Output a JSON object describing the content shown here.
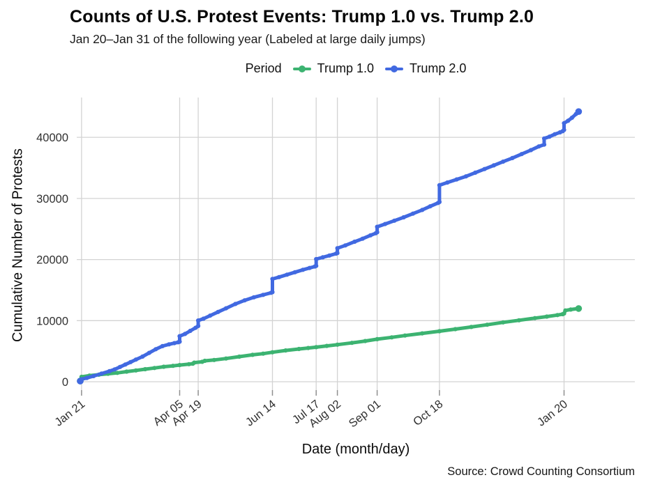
{
  "title": "Counts of U.S. Protest Events: Trump 1.0 vs. Trump 2.0",
  "subtitle": "Jan 20–Jan 31 of the following year (Labeled at large daily jumps)",
  "caption": "Source: Crowd Counting Consortium",
  "legend": {
    "title": "Period",
    "items": [
      {
        "label": "Trump 1.0",
        "color": "#3cb371"
      },
      {
        "label": "Trump 2.0",
        "color": "#4169e1"
      }
    ]
  },
  "colors": {
    "trump1": "#3cb371",
    "trump2": "#4169e1",
    "gridline": "#d3d3d3",
    "tick": "#8f8f8f",
    "tick_label": "#303030"
  },
  "chart_data": {
    "type": "line",
    "title": "Counts of U.S. Protest Events: Trump 1.0 vs. Trump 2.0",
    "subtitle": "Jan 20–Jan 31 of the following year (Labeled at large daily jumps)",
    "xlabel": "Date (month/day)",
    "ylabel": "Cumulative Number of Protests",
    "grid": true,
    "legend_position": "top",
    "x_axis": {
      "unit": "days since Jan 20 inauguration",
      "domain_days": [
        0,
        376
      ],
      "ticks": [
        {
          "label": "Jan 21",
          "day": 1
        },
        {
          "label": "Apr 05",
          "day": 75
        },
        {
          "label": "Apr 19",
          "day": 89
        },
        {
          "label": "Jun 14",
          "day": 145
        },
        {
          "label": "Jul 17",
          "day": 178
        },
        {
          "label": "Aug 02",
          "day": 194
        },
        {
          "label": "Sep 01",
          "day": 224
        },
        {
          "label": "Oct 18",
          "day": 271
        },
        {
          "label": "Jan 20",
          "day": 365
        }
      ]
    },
    "y_axis": {
      "ticks": [
        0,
        10000,
        20000,
        30000,
        40000
      ],
      "range": [
        0,
        44200
      ]
    },
    "series": [
      {
        "name": "Trump 1.0",
        "color": "#3cb371",
        "points": [
          [
            0,
            120
          ],
          [
            1,
            800
          ],
          [
            7,
            1000
          ],
          [
            14,
            1150
          ],
          [
            21,
            1300
          ],
          [
            28,
            1450
          ],
          [
            35,
            1650
          ],
          [
            42,
            1850
          ],
          [
            49,
            2050
          ],
          [
            56,
            2250
          ],
          [
            63,
            2450
          ],
          [
            70,
            2600
          ],
          [
            75,
            2720
          ],
          [
            82,
            2870
          ],
          [
            85,
            2950
          ],
          [
            86,
            3120
          ],
          [
            92,
            3260
          ],
          [
            94,
            3420
          ],
          [
            101,
            3560
          ],
          [
            110,
            3800
          ],
          [
            120,
            4100
          ],
          [
            130,
            4400
          ],
          [
            138,
            4600
          ],
          [
            145,
            4820
          ],
          [
            155,
            5120
          ],
          [
            165,
            5360
          ],
          [
            172,
            5520
          ],
          [
            178,
            5660
          ],
          [
            186,
            5860
          ],
          [
            194,
            6060
          ],
          [
            205,
            6360
          ],
          [
            215,
            6660
          ],
          [
            224,
            6960
          ],
          [
            235,
            7260
          ],
          [
            245,
            7560
          ],
          [
            258,
            7910
          ],
          [
            271,
            8260
          ],
          [
            283,
            8610
          ],
          [
            295,
            8960
          ],
          [
            307,
            9320
          ],
          [
            319,
            9710
          ],
          [
            331,
            10060
          ],
          [
            343,
            10410
          ],
          [
            352,
            10660
          ],
          [
            360,
            10910
          ],
          [
            364,
            11060
          ],
          [
            365,
            11160
          ],
          [
            366,
            11660
          ],
          [
            370,
            11810
          ],
          [
            376,
            11980
          ]
        ]
      },
      {
        "name": "Trump 2.0",
        "color": "#4169e1",
        "points": [
          [
            0,
            100
          ],
          [
            1,
            400
          ],
          [
            5,
            620
          ],
          [
            10,
            920
          ],
          [
            16,
            1320
          ],
          [
            22,
            1720
          ],
          [
            26,
            2020
          ],
          [
            30,
            2420
          ],
          [
            34,
            2820
          ],
          [
            38,
            3220
          ],
          [
            42,
            3620
          ],
          [
            47,
            4120
          ],
          [
            52,
            4720
          ],
          [
            57,
            5320
          ],
          [
            62,
            5820
          ],
          [
            67,
            6120
          ],
          [
            71,
            6320
          ],
          [
            74,
            6460
          ],
          [
            75,
            6560
          ],
          [
            75,
            7460
          ],
          [
            79,
            7820
          ],
          [
            83,
            8320
          ],
          [
            87,
            8820
          ],
          [
            89,
            9120
          ],
          [
            89,
            10020
          ],
          [
            93,
            10320
          ],
          [
            98,
            10820
          ],
          [
            104,
            11420
          ],
          [
            110,
            12020
          ],
          [
            117,
            12720
          ],
          [
            124,
            13320
          ],
          [
            131,
            13820
          ],
          [
            138,
            14220
          ],
          [
            144,
            14560
          ],
          [
            145,
            14660
          ],
          [
            145,
            16820
          ],
          [
            150,
            17120
          ],
          [
            156,
            17520
          ],
          [
            162,
            17920
          ],
          [
            168,
            18320
          ],
          [
            173,
            18620
          ],
          [
            177,
            18860
          ],
          [
            178,
            18960
          ],
          [
            178,
            20060
          ],
          [
            183,
            20360
          ],
          [
            188,
            20660
          ],
          [
            193,
            20960
          ],
          [
            194,
            21060
          ],
          [
            194,
            21860
          ],
          [
            200,
            22310
          ],
          [
            207,
            22910
          ],
          [
            213,
            23410
          ],
          [
            219,
            23960
          ],
          [
            223,
            24310
          ],
          [
            224,
            24460
          ],
          [
            224,
            25360
          ],
          [
            230,
            25810
          ],
          [
            237,
            26360
          ],
          [
            244,
            26910
          ],
          [
            251,
            27510
          ],
          [
            258,
            28110
          ],
          [
            264,
            28710
          ],
          [
            270,
            29260
          ],
          [
            271,
            29410
          ],
          [
            271,
            32160
          ],
          [
            277,
            32610
          ],
          [
            284,
            33110
          ],
          [
            291,
            33610
          ],
          [
            298,
            34210
          ],
          [
            305,
            34810
          ],
          [
            312,
            35410
          ],
          [
            319,
            36010
          ],
          [
            326,
            36610
          ],
          [
            333,
            37260
          ],
          [
            340,
            37910
          ],
          [
            346,
            38510
          ],
          [
            350,
            38810
          ],
          [
            350,
            39810
          ],
          [
            354,
            40110
          ],
          [
            358,
            40510
          ],
          [
            362,
            40810
          ],
          [
            364,
            41010
          ],
          [
            365,
            41210
          ],
          [
            365,
            42310
          ],
          [
            368,
            42710
          ],
          [
            371,
            43210
          ],
          [
            374,
            43810
          ],
          [
            376,
            44210
          ]
        ]
      }
    ]
  }
}
